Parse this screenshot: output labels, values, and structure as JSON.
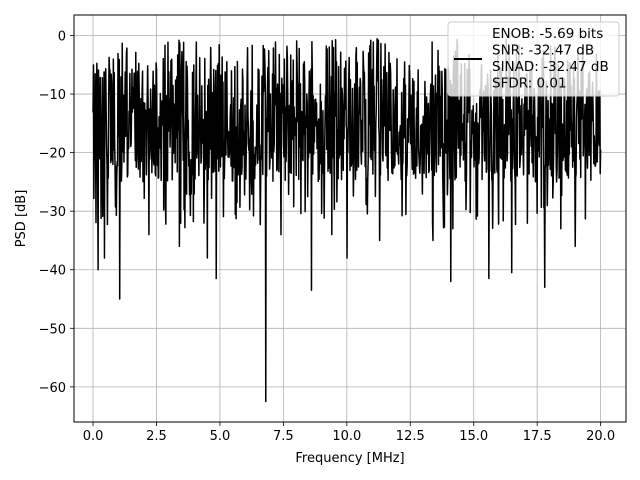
{
  "chart_data": {
    "type": "line",
    "xlabel": "Frequency [MHz]",
    "ylabel": "PSD [dB]",
    "xlim": [
      -0.75,
      21.0
    ],
    "ylim": [
      -66,
      3.5
    ],
    "xticks": [
      0.0,
      2.5,
      5.0,
      7.5,
      10.0,
      12.5,
      15.0,
      17.5,
      20.0
    ],
    "xtick_labels": [
      "0.0",
      "2.5",
      "5.0",
      "7.5",
      "10.0",
      "12.5",
      "15.0",
      "17.5",
      "20.0"
    ],
    "yticks": [
      0,
      -10,
      -20,
      -30,
      -40,
      -50,
      -60
    ],
    "ytick_labels": [
      "0",
      "−10",
      "−20",
      "−30",
      "−40",
      "−50",
      "−60"
    ],
    "grid": true,
    "legend_position": "top-right",
    "series": [
      {
        "name": "ENOB: -5.69 bits\nSNR: -32.47 dB\nSINAD: -32.47 dB\nSFDR: 0.01",
        "color": "#000000",
        "x_range": [
          0.0,
          20.0
        ],
        "n_points": 1200,
        "typical_band": [
          -25,
          -3
        ],
        "max": -0.5,
        "notable_minima": [
          {
            "x": 0.2,
            "y": -40
          },
          {
            "x": 0.45,
            "y": -38
          },
          {
            "x": 1.05,
            "y": -45
          },
          {
            "x": 2.2,
            "y": -34
          },
          {
            "x": 3.4,
            "y": -36
          },
          {
            "x": 4.5,
            "y": -38
          },
          {
            "x": 4.85,
            "y": -41.5
          },
          {
            "x": 6.8,
            "y": -62.5
          },
          {
            "x": 7.4,
            "y": -34
          },
          {
            "x": 8.6,
            "y": -43.5
          },
          {
            "x": 9.4,
            "y": -34
          },
          {
            "x": 10.0,
            "y": -38
          },
          {
            "x": 11.3,
            "y": -35
          },
          {
            "x": 13.4,
            "y": -35
          },
          {
            "x": 14.1,
            "y": -42
          },
          {
            "x": 15.6,
            "y": -41.5
          },
          {
            "x": 16.5,
            "y": -40.5
          },
          {
            "x": 17.8,
            "y": -43
          },
          {
            "x": 19.0,
            "y": -36
          }
        ]
      }
    ]
  }
}
